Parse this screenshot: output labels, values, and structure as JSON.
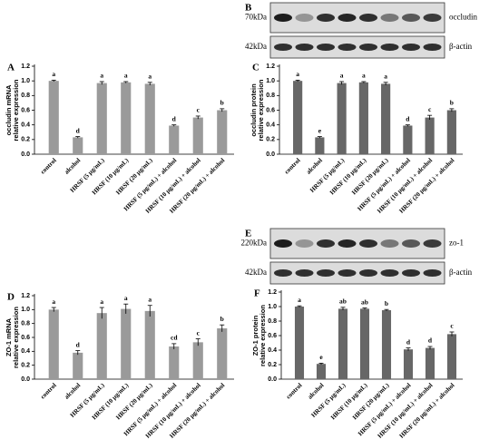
{
  "chart_data": [
    {
      "type": "bar",
      "label": "A",
      "ylabel": [
        "occludin mRNA",
        "relative expression"
      ],
      "categories": [
        "control",
        "alcohol",
        "HRSF (5 μg/mL)",
        "HRSF (10 μg/mL)",
        "HRSF (20 μg/mL)",
        "HRSF (5 μg/mL) + alcohol",
        "HRSF (10 μg/mL) + alcohol",
        "HRSF (20 μg/mL) + alcohol"
      ],
      "values": [
        1.0,
        0.23,
        0.97,
        0.98,
        0.96,
        0.39,
        0.5,
        0.6
      ],
      "errors": [
        0.01,
        0.01,
        0.02,
        0.01,
        0.02,
        0.01,
        0.02,
        0.02
      ],
      "annotations": [
        "a",
        "d",
        "a",
        "a",
        "a",
        "d",
        "c",
        "b"
      ],
      "color": "#9a9a9a",
      "ylim": [
        0,
        1.2
      ],
      "yticks": [
        {
          "value": 0,
          "label": "0.0"
        },
        0.2,
        0.4,
        0.6,
        0.8,
        {
          "value": 1,
          "label": "1.0"
        },
        1.2
      ]
    },
    {
      "type": "bar",
      "label": "C",
      "ylabel": [
        "occludin protein",
        "relative expression"
      ],
      "categories": [
        "control",
        "alcohol",
        "HRSF (5 μg/mL)",
        "HRSF (10 μg/mL)",
        "HRSF (20 μg/mL)",
        "HRSF (5 μg/mL) + alcohol",
        "HRSF (10 μg/mL) + alcohol",
        "HRSF (20 μg/mL) + alcohol"
      ],
      "values": [
        1.0,
        0.23,
        0.97,
        0.98,
        0.96,
        0.39,
        0.5,
        0.6
      ],
      "errors": [
        0.01,
        0.01,
        0.02,
        0.01,
        0.02,
        0.01,
        0.03,
        0.02
      ],
      "annotations": [
        "a",
        "e",
        "a",
        "a",
        "a",
        "d",
        "c",
        "b"
      ],
      "color": "#676767",
      "ylim": [
        0,
        1.2
      ],
      "yticks": [
        {
          "value": 0,
          "label": "0.0"
        },
        0.2,
        0.4,
        0.6,
        0.8,
        {
          "value": 1,
          "label": "1.0"
        },
        1.2
      ]
    },
    {
      "type": "bar",
      "label": "D",
      "ylabel": [
        "ZO-1 mRNA",
        "relative expression"
      ],
      "categories": [
        "control",
        "alcohol",
        "HRSF (5 μg/mL)",
        "HRSF (10 μg/mL)",
        "HRSF (20 μg/mL)",
        "HRSF (5 μg/mL) + alcohol",
        "HRSF (10 μg/mL) + alcohol",
        "HRSF (20 μg/mL) + alcohol"
      ],
      "values": [
        1.0,
        0.38,
        0.95,
        1.01,
        0.98,
        0.47,
        0.53,
        0.73
      ],
      "errors": [
        0.03,
        0.03,
        0.08,
        0.07,
        0.08,
        0.04,
        0.05,
        0.05
      ],
      "annotations": [
        "a",
        "d",
        "a",
        "a",
        "a",
        "cd",
        "c",
        "b"
      ],
      "color": "#9a9a9a",
      "ylim": [
        0,
        1.2
      ],
      "yticks": [
        {
          "value": 0,
          "label": "0.0"
        },
        0.2,
        0.4,
        0.6,
        0.8,
        {
          "value": 1,
          "label": "1.0"
        },
        1.2
      ]
    },
    {
      "type": "bar",
      "label": "F",
      "ylabel": [
        "ZO-1 protein",
        "relative expression"
      ],
      "categories": [
        "control",
        "alcohol",
        "HRSF (5 μg/mL)",
        "HRSF (10 μg/mL)",
        "HRSF (20 μg/mL)",
        "HRSF (5 μg/mL) + alcohol",
        "HRSF (10 μg/mL) + alcohol",
        "HRSF (20 μg/mL) + alcohol"
      ],
      "values": [
        1.0,
        0.21,
        0.97,
        0.97,
        0.95,
        0.41,
        0.43,
        0.62
      ],
      "errors": [
        0.01,
        0.01,
        0.02,
        0.01,
        0.01,
        0.02,
        0.02,
        0.03
      ],
      "annotations": [
        "a",
        "e",
        "ab",
        "ab",
        "b",
        "d",
        "d",
        "c"
      ],
      "color": "#676767",
      "ylim": [
        0,
        1.2
      ],
      "yticks": [
        {
          "value": 0,
          "label": "0.0"
        },
        0.2,
        0.4,
        0.6,
        0.8,
        {
          "value": 1,
          "label": "1.0"
        },
        1.2
      ]
    }
  ],
  "blots": [
    {
      "label": "B",
      "top": {
        "size": "70kDa",
        "name": "occludin"
      },
      "bottom": {
        "size": "42kDa",
        "name": "β-actin"
      }
    },
    {
      "label": "E",
      "top": {
        "size": "220kDa",
        "name": "zo-1"
      },
      "bottom": {
        "size": "42kDa",
        "name": "β-actin"
      }
    }
  ]
}
